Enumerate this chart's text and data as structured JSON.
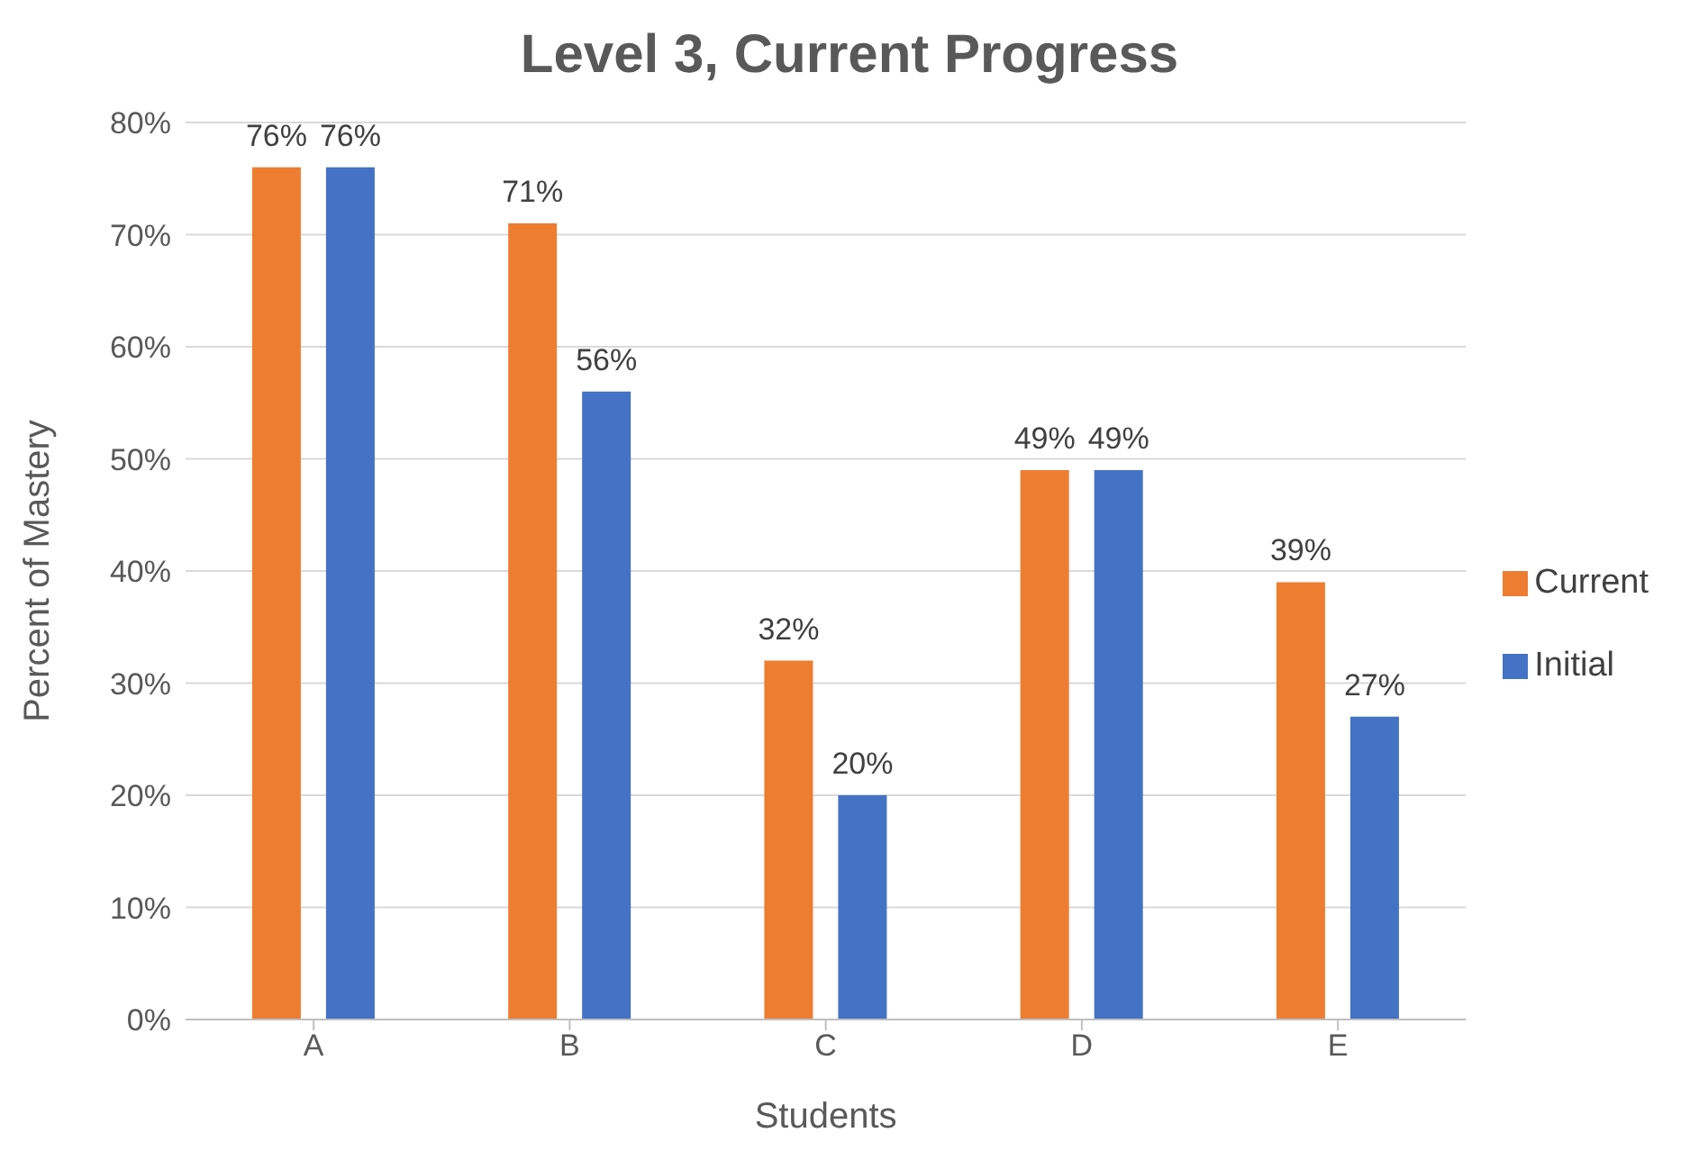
{
  "chart_data": {
    "type": "bar",
    "title": "Level 3, Current Progress",
    "xlabel": "Students",
    "ylabel": "Percent of Mastery",
    "categories": [
      "A",
      "B",
      "C",
      "D",
      "E"
    ],
    "series": [
      {
        "name": "Current",
        "color": "#ed7d31",
        "values": [
          76,
          71,
          32,
          49,
          39
        ],
        "value_labels": [
          "76%",
          "71%",
          "32%",
          "49%",
          "39%"
        ]
      },
      {
        "name": "Initial",
        "color": "#4472c4",
        "values": [
          76,
          56,
          20,
          49,
          27
        ],
        "value_labels": [
          "76%",
          "56%",
          "20%",
          "49%",
          "27%"
        ]
      }
    ],
    "ylim": [
      0,
      80
    ],
    "yticks": [
      {
        "value": 0,
        "label": "0%"
      },
      {
        "value": 10,
        "label": "10%"
      },
      {
        "value": 20,
        "label": "20%"
      },
      {
        "value": 30,
        "label": "30%"
      },
      {
        "value": 40,
        "label": "40%"
      },
      {
        "value": 50,
        "label": "50%"
      },
      {
        "value": 60,
        "label": "60%"
      },
      {
        "value": 70,
        "label": "70%"
      },
      {
        "value": 80,
        "label": "80%"
      }
    ],
    "grid": "y",
    "legend": "right"
  }
}
